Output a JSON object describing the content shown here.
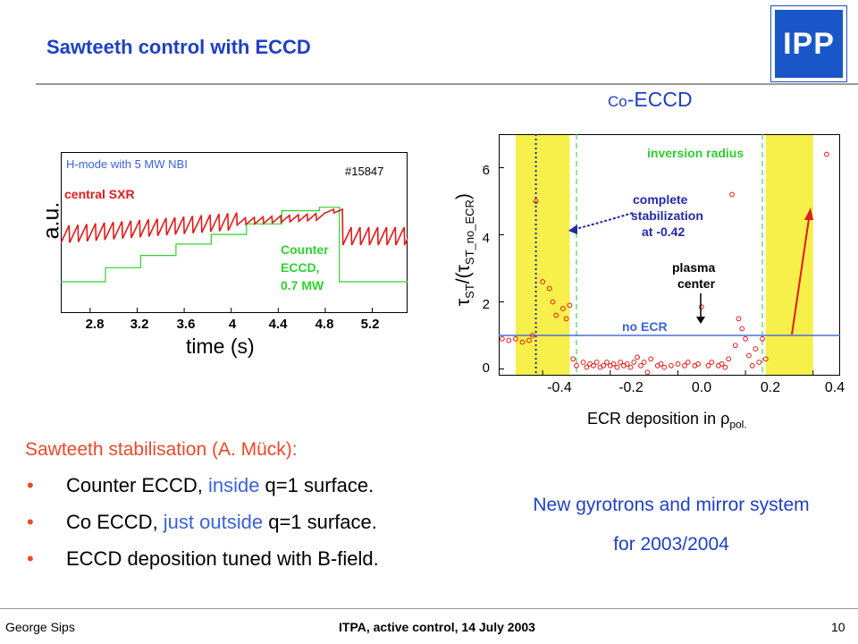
{
  "slide": {
    "title": "Sawteeth control with ECCD",
    "logo_text": "IPP",
    "left_plot": {
      "ylabel": "a.u.",
      "xlabel": "time  (s)",
      "xticks": [
        "2.8",
        "3.2",
        "3.6",
        "4",
        "4.4",
        "4.8",
        "5.2"
      ],
      "annotation_mode": "H-mode with 5 MW NBI",
      "shot": "#15847",
      "sxr_label": "central SXR",
      "counter_label": [
        "Counter",
        "ECCD,",
        "0.7 MW"
      ]
    },
    "right_plot": {
      "header_small": "Co",
      "header_big": "-ECCD",
      "ylabel_main": "τ",
      "ylabel_sub1": "ST",
      "ylabel_mid": "/(τ",
      "ylabel_sub2": "ST_no_ECR",
      "ylabel_end": ")",
      "xlabel": "ECR deposition in ρ",
      "xlabel_sub": "pol.",
      "yticks": [
        "0",
        "2",
        "4",
        "6"
      ],
      "xticks": [
        "-0.4",
        "-0.2",
        "0.0",
        "0.2",
        "0.4"
      ],
      "inversion_label": "inversion radius",
      "stab_label": [
        "complete",
        "stabilization",
        "at -0.42"
      ],
      "center_label": [
        "plasma",
        "center"
      ],
      "noecr_label": "no ECR"
    },
    "stab_title": "Sawteeth stabilisation (A. Mück):",
    "bullets": [
      {
        "dot": "•",
        "a": "Counter ECCD, ",
        "b": "inside",
        "c": " q=1 surface."
      },
      {
        "dot": "•",
        "a": "Co ECCD, ",
        "b": "just outside",
        "c": " q=1 surface."
      },
      {
        "dot": "•",
        "a": "ECCD deposition tuned with B-field.",
        "b": "",
        "c": ""
      }
    ],
    "new_gyrotrons": [
      "New gyrotrons and mirror system",
      "for 2003/2004"
    ],
    "footer": {
      "left": "George Sips",
      "center": "ITPA, active control, 14 July 2003",
      "page": "10"
    }
  },
  "chart_data": [
    {
      "type": "line",
      "title": "",
      "xlabel": "time  (s)",
      "ylabel": "a.u.",
      "xlim": [
        2.55,
        5.5
      ],
      "series": [
        {
          "name": "central SXR",
          "color": "#e11b1b"
        },
        {
          "name": "Counter ECCD, 0.7 MW",
          "color": "#2fd22f",
          "x": [
            2.55,
            2.93,
            2.93,
            3.23,
            3.23,
            3.53,
            3.53,
            3.83,
            3.83,
            4.13,
            4.13,
            4.43,
            4.43,
            4.75,
            4.75,
            4.92,
            4.92,
            5.5
          ],
          "y": [
            0.0,
            0.0,
            0.16,
            0.16,
            0.3,
            0.3,
            0.43,
            0.43,
            0.54,
            0.54,
            0.66,
            0.66,
            0.81,
            0.81,
            0.85,
            0.85,
            0.0,
            0.0
          ]
        }
      ]
    },
    {
      "type": "scatter",
      "title": "Co-ECCD",
      "xlabel": "ECR deposition in ρpol.",
      "ylabel": "τST/(τST_no_ECR)",
      "xlim": [
        -0.53,
        0.48
      ],
      "ylim": [
        -0.2,
        7.0
      ],
      "yticks": [
        0,
        2,
        4,
        6
      ],
      "xticks": [
        -0.4,
        -0.2,
        0.0,
        0.2,
        0.4
      ],
      "bands": [
        {
          "x0": -0.48,
          "x1": -0.32,
          "color": "#f7ef4a"
        },
        {
          "x0": 0.26,
          "x1": 0.4,
          "color": "#f7ef4a"
        }
      ],
      "vlines": [
        {
          "x": -0.42,
          "color": "#1f2aa8",
          "style": "dotted"
        },
        {
          "x": -0.3,
          "color": "#55cc55",
          "style": "dashed"
        },
        {
          "x": 0.25,
          "color": "#55cc55",
          "style": "dashed"
        }
      ],
      "hline": {
        "y": 1.0,
        "color": "#4a6fe0"
      },
      "series": [
        {
          "name": "tau ratio",
          "color": "#e11b1b",
          "points": [
            [
              -0.52,
              0.9
            ],
            [
              -0.5,
              0.85
            ],
            [
              -0.48,
              0.9
            ],
            [
              -0.46,
              0.8
            ],
            [
              -0.44,
              0.85
            ],
            [
              -0.43,
              1.0
            ],
            [
              -0.42,
              5.0
            ],
            [
              -0.4,
              2.6
            ],
            [
              -0.38,
              2.4
            ],
            [
              -0.37,
              2.0
            ],
            [
              -0.36,
              1.6
            ],
            [
              -0.34,
              1.8
            ],
            [
              -0.33,
              1.5
            ],
            [
              -0.32,
              1.9
            ],
            [
              -0.31,
              0.3
            ],
            [
              -0.3,
              0.1
            ],
            [
              -0.28,
              0.2
            ],
            [
              -0.27,
              0.05
            ],
            [
              -0.26,
              0.15
            ],
            [
              -0.25,
              0.1
            ],
            [
              -0.24,
              0.2
            ],
            [
              -0.23,
              0.05
            ],
            [
              -0.22,
              0.1
            ],
            [
              -0.21,
              0.2
            ],
            [
              -0.2,
              0.1
            ],
            [
              -0.19,
              0.15
            ],
            [
              -0.18,
              0.05
            ],
            [
              -0.17,
              0.2
            ],
            [
              -0.16,
              0.1
            ],
            [
              -0.15,
              0.15
            ],
            [
              -0.14,
              0.05
            ],
            [
              -0.13,
              0.2
            ],
            [
              -0.12,
              0.35
            ],
            [
              -0.11,
              0.1
            ],
            [
              -0.1,
              0.2
            ],
            [
              -0.09,
              -0.1
            ],
            [
              -0.08,
              0.3
            ],
            [
              -0.06,
              0.1
            ],
            [
              -0.05,
              0.15
            ],
            [
              -0.04,
              0.05
            ],
            [
              -0.02,
              0.1
            ],
            [
              0.0,
              0.15
            ],
            [
              0.02,
              0.1
            ],
            [
              0.03,
              0.2
            ],
            [
              0.05,
              0.1
            ],
            [
              0.06,
              0.15
            ],
            [
              0.07,
              1.85
            ],
            [
              0.09,
              0.1
            ],
            [
              0.1,
              0.2
            ],
            [
              0.12,
              0.1
            ],
            [
              0.13,
              0.15
            ],
            [
              0.14,
              0.05
            ],
            [
              0.15,
              0.3
            ],
            [
              0.16,
              5.2
            ],
            [
              0.17,
              0.7
            ],
            [
              0.18,
              1.5
            ],
            [
              0.19,
              1.2
            ],
            [
              0.2,
              0.9
            ],
            [
              0.21,
              0.4
            ],
            [
              0.22,
              0.1
            ],
            [
              0.23,
              0.6
            ],
            [
              0.24,
              0.2
            ],
            [
              0.25,
              0.9
            ],
            [
              0.26,
              0.3
            ],
            [
              0.44,
              6.4
            ]
          ]
        }
      ]
    }
  ]
}
